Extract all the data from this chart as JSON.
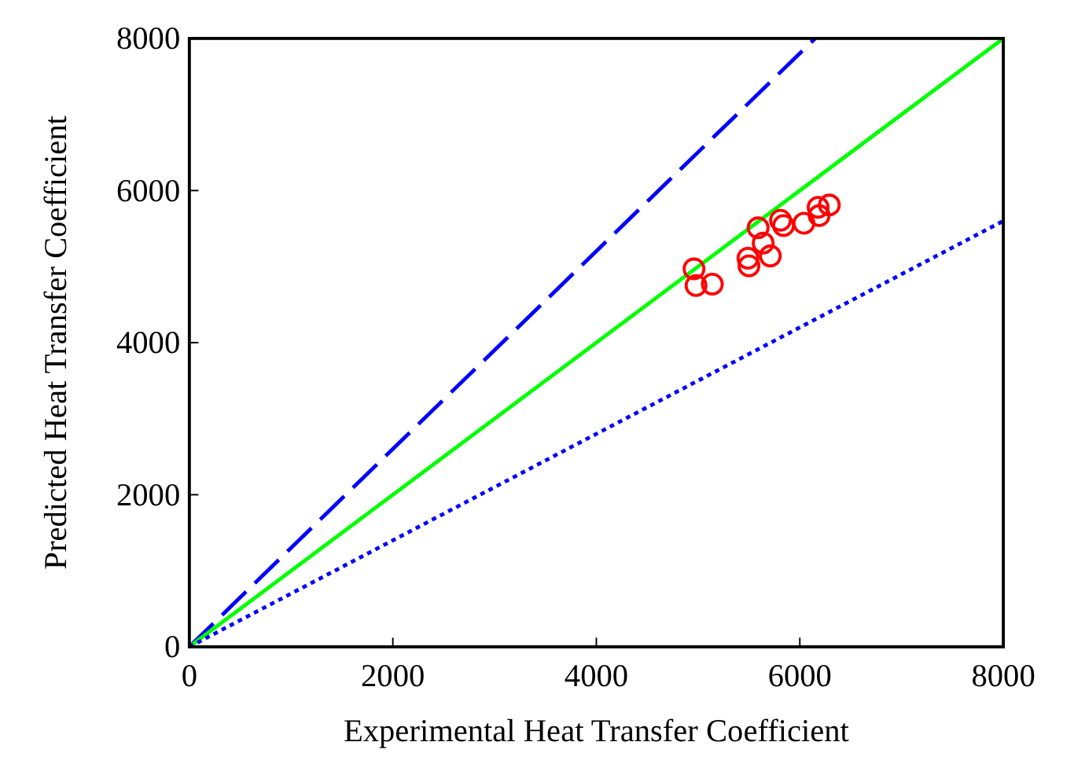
{
  "chart_data": {
    "type": "scatter",
    "xlabel": "Experimental Heat Transfer Coefficient",
    "ylabel": "Predicted Heat Transfer Coefficient",
    "xlim": [
      0,
      8000
    ],
    "ylim": [
      0,
      8000
    ],
    "xticks": [
      0,
      2000,
      4000,
      6000,
      8000
    ],
    "yticks": [
      0,
      2000,
      4000,
      6000,
      8000
    ],
    "grid": false,
    "series": [
      {
        "type": "line",
        "color": "#0000ff",
        "line_style": "dashed",
        "x": [
          0,
          6150
        ],
        "values": [
          0,
          8000
        ]
      },
      {
        "type": "line",
        "color": "#00ff00",
        "line_style": "solid",
        "x": [
          0,
          8000
        ],
        "values": [
          0,
          8000
        ]
      },
      {
        "type": "line",
        "color": "#0000ff",
        "line_style": "dotted",
        "x": [
          0,
          8000
        ],
        "values": [
          0,
          5600
        ]
      },
      {
        "color": "#ff0000",
        "marker": "circle",
        "x": [
          4960,
          4980,
          5140,
          5490,
          5500,
          5590,
          5640,
          5710,
          5810,
          5840,
          6040,
          6190,
          6290,
          6180
        ],
        "values": [
          4970,
          4750,
          4770,
          5110,
          5010,
          5510,
          5310,
          5140,
          5610,
          5540,
          5570,
          5670,
          5810,
          5780
        ]
      }
    ]
  }
}
